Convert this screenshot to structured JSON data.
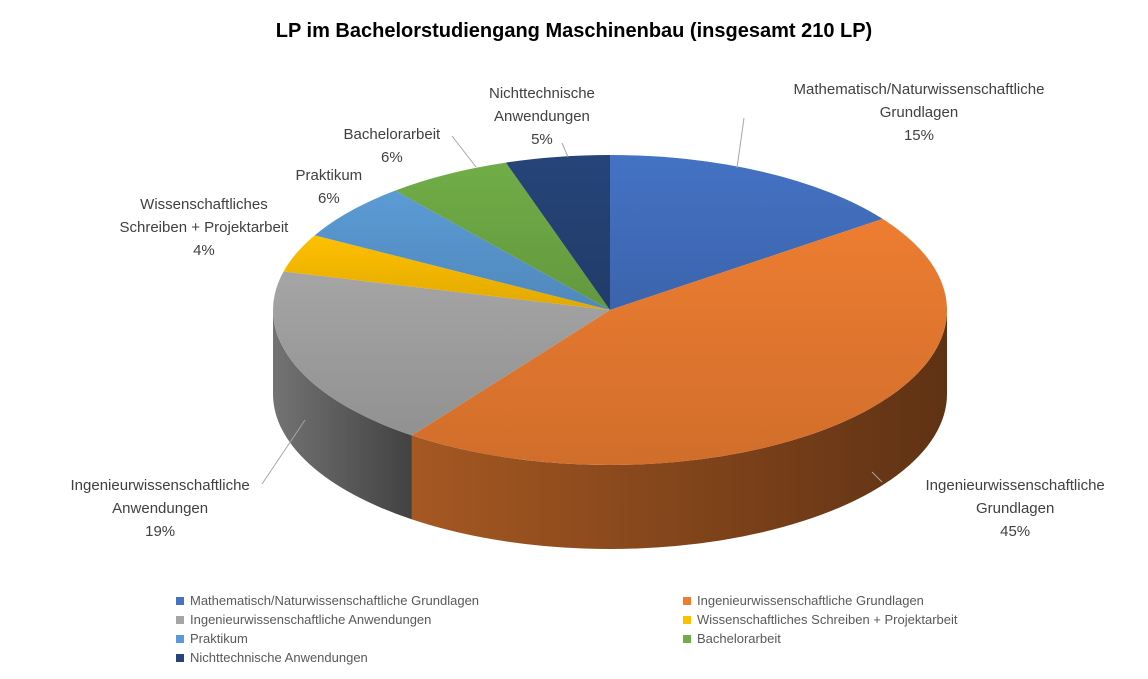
{
  "chart_data": {
    "type": "pie",
    "title": "LP im Bachelorstudiengang Maschinenbau (insgesamt 210 LP)",
    "slices": [
      {
        "name": "Mathematisch/Naturwissenschaftliche Grundlagen",
        "label_lines": [
          "Mathematisch/Naturwissenschaftliche",
          "Grundlagen"
        ],
        "value": 15,
        "percent_label": "15%",
        "color": "#4472C4"
      },
      {
        "name": "Ingenieurwissenschaftliche Grundlagen",
        "label_lines": [
          "Ingenieurwissenschaftliche",
          "Grundlagen"
        ],
        "value": 45,
        "percent_label": "45%",
        "color": "#ED7D31"
      },
      {
        "name": "Ingenieurwissenschaftliche Anwendungen",
        "label_lines": [
          "Ingenieurwissenschaftliche",
          "Anwendungen"
        ],
        "value": 19,
        "percent_label": "19%",
        "color": "#A5A5A5"
      },
      {
        "name": "Wissenschaftliches Schreiben + Projektarbeit",
        "label_lines": [
          "Wissenschaftliches",
          "Schreiben + Projektarbeit"
        ],
        "value": 4,
        "percent_label": "4%",
        "color": "#FFC000"
      },
      {
        "name": "Praktikum",
        "label_lines": [
          "Praktikum"
        ],
        "value": 6,
        "percent_label": "6%",
        "color": "#5B9BD5"
      },
      {
        "name": "Bachelorarbeit",
        "label_lines": [
          "Bachelorarbeit"
        ],
        "value": 6,
        "percent_label": "6%",
        "color": "#70AD47"
      },
      {
        "name": "Nichttechnische Anwendungen",
        "label_lines": [
          "Nichttechnische",
          "Anwendungen"
        ],
        "value": 5,
        "percent_label": "5%",
        "color": "#264478"
      }
    ],
    "style": "3d-pie",
    "legend_position": "bottom"
  }
}
